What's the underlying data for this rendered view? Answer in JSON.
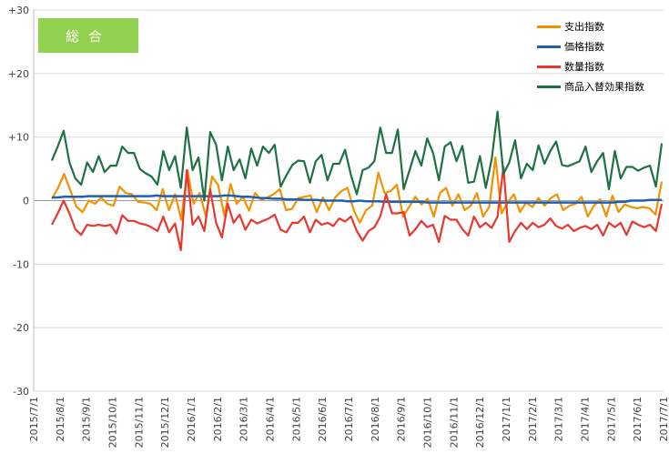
{
  "badge": {
    "label": "総合"
  },
  "chart_data": {
    "type": "line",
    "ylim": [
      -30,
      30
    ],
    "y_ticks": [
      "+30",
      "+20",
      "+10",
      "0",
      "-10",
      "-20",
      "-30"
    ],
    "x_labels": [
      "2015/7/1",
      "2015/8/1",
      "2015/9/1",
      "2015/10/1",
      "2015/11/1",
      "2015/12/1",
      "2016/1/1",
      "2016/2/1",
      "2016/3/1",
      "2016/4/1",
      "2016/5/1",
      "2016/6/1",
      "2016/7/1",
      "2016/8/1",
      "2016/9/1",
      "2016/10/1",
      "2016/11/1",
      "2016/12/1",
      "2017/1/1",
      "2017/2/1",
      "2017/3/1",
      "2017/4/1",
      "2017/5/1",
      "2017/6/1",
      "2017/7/1"
    ],
    "grid": "horizontal",
    "legend_position": "top-right",
    "series": [
      {
        "name": "支出指数",
        "color": "#f39200",
        "values": [
          0.3,
          2,
          4.2,
          1.6,
          -1,
          -1.8,
          0,
          -0.5,
          0.5,
          -0.5,
          -0.8,
          2.2,
          1.2,
          1,
          -0.2,
          -0.3,
          -0.5,
          -1.5,
          1.8,
          -1.5,
          1,
          -3,
          4.8,
          -0.5,
          1.2,
          -2.5,
          3.8,
          2.4,
          -2.4,
          2.6,
          -0.5,
          0.6,
          -1.6,
          1.2,
          0.1,
          0.5,
          1,
          1.8,
          -1.5,
          -1.3,
          0.4,
          0.6,
          0.8,
          -1.8,
          0.5,
          -1.5,
          0.5,
          1.5,
          2,
          -1.5,
          -3.5,
          -1.5,
          -0.8,
          4.4,
          1.2,
          1.5,
          2.5,
          -2.5,
          -1,
          0.6,
          -0.6,
          0.3,
          -2.5,
          1.2,
          2,
          -0.8,
          1,
          -1.5,
          -0.8,
          1.2,
          -2.5,
          -1,
          6.8,
          -2,
          -0.3,
          1,
          -1.8,
          -0.3,
          -1,
          0.4,
          -0.8,
          0.4,
          1,
          -1.5,
          -0.8,
          -0.5,
          0.6,
          -2.5,
          -0.8,
          0.2,
          -2.5,
          0.8,
          -1.8,
          -0.6,
          -1,
          -1.2,
          -1,
          -1.2,
          -2.2,
          3
        ]
      },
      {
        "name": "価格指数",
        "color": "#1f5fb4",
        "values": [
          0.5,
          0.5,
          0.6,
          0.6,
          0.6,
          0.6,
          0.7,
          0.7,
          0.7,
          0.7,
          0.7,
          0.7,
          0.7,
          0.7,
          0.7,
          0.7,
          0.7,
          0.8,
          0.7,
          0.7,
          0.7,
          0.7,
          0.7,
          0.7,
          0.7,
          0.7,
          0.7,
          0.7,
          0.8,
          0.8,
          0.7,
          0.6,
          0.6,
          0.5,
          0.4,
          0.4,
          0.3,
          0.3,
          0.2,
          0.2,
          0.2,
          0.1,
          0.1,
          0.1,
          0,
          0,
          0,
          0,
          -0.1,
          -0.1,
          0,
          -0.1,
          -0.1,
          -0.1,
          -0.2,
          -0.2,
          -0.2,
          -0.2,
          -0.2,
          -0.2,
          -0.2,
          -0.3,
          -0.3,
          -0.3,
          -0.3,
          -0.3,
          -0.3,
          -0.3,
          -0.3,
          -0.3,
          -0.3,
          -0.3,
          -0.3,
          -0.3,
          -0.3,
          -0.3,
          -0.3,
          -0.3,
          -0.3,
          -0.3,
          -0.3,
          -0.3,
          -0.3,
          -0.3,
          -0.3,
          -0.3,
          -0.3,
          -0.3,
          -0.3,
          -0.3,
          -0.3,
          -0.3,
          -0.2,
          -0.2,
          0,
          0,
          0,
          0.1,
          0.1,
          0.1
        ]
      },
      {
        "name": "数量指数",
        "color": "#e8382e",
        "values": [
          -3.8,
          -2,
          0,
          -2,
          -4.5,
          -5.4,
          -3.8,
          -4,
          -3.8,
          -4,
          -3.8,
          -5.2,
          -2.3,
          -3.2,
          -3.2,
          -3.6,
          -3.8,
          -4.2,
          -4.8,
          -2.5,
          -5,
          -3.6,
          -7.8,
          4.8,
          -3.8,
          -2.5,
          -4.8,
          1.8,
          -3.5,
          -5.8,
          -0.5,
          -3.5,
          -2.2,
          -4.6,
          -3,
          -3.6,
          -3.2,
          -2.8,
          -2.2,
          -4.6,
          -5,
          -3.5,
          -3.5,
          -2.5,
          -5,
          -3,
          -3.8,
          -3.5,
          -4,
          -2.8,
          -3.3,
          -2.5,
          -4.8,
          -6.3,
          -4.8,
          -4.2,
          -2.5,
          1,
          -2,
          -2,
          -1.8,
          -5.5,
          -4.5,
          -3.2,
          -4.2,
          -3.8,
          -6.5,
          -2.4,
          -3,
          -3,
          -4.5,
          -5.5,
          -2.5,
          -4.2,
          -3.5,
          -4.3,
          -2.5,
          5.3,
          -6.5,
          -4.8,
          -3.5,
          -4.5,
          -3.5,
          -4.2,
          -3.8,
          -2.8,
          -4,
          -4.4,
          -3.8,
          -4.8,
          -4.3,
          -4,
          -4.5,
          -3.8,
          -5.5,
          -3.5,
          -4.2,
          -3.5,
          -5.4,
          -3.3,
          -3.8,
          -4.2,
          -3.8,
          -4.8,
          -0.5
        ]
      },
      {
        "name": "商品入替効果指数",
        "color": "#1e7145",
        "values": [
          6.3,
          8.5,
          11,
          6,
          3.5,
          2.5,
          6,
          4.5,
          7,
          4.5,
          5.5,
          5.5,
          8.5,
          7.5,
          7.5,
          5,
          4.3,
          3.8,
          2.5,
          7.8,
          4.8,
          7,
          2,
          11.5,
          4.8,
          6.8,
          0,
          10.8,
          8.8,
          3.2,
          8.5,
          4.8,
          6.5,
          3.5,
          8.2,
          5.5,
          8.5,
          7.5,
          8.8,
          2.2,
          4,
          5.6,
          6.3,
          6.2,
          2.8,
          6.2,
          7.2,
          3.2,
          5.8,
          5.8,
          8,
          4,
          1,
          4.8,
          5.2,
          6.2,
          11.5,
          7.5,
          7.5,
          11.2,
          1.8,
          4.8,
          7.8,
          5.5,
          9.8,
          7.5,
          3.2,
          8.5,
          9.2,
          6.2,
          8.6,
          2.8,
          3,
          7,
          2,
          6.5,
          14,
          4.2,
          6,
          9.5,
          3.5,
          5.8,
          4.8,
          8.7,
          5.8,
          7.8,
          9.3,
          5.6,
          5.4,
          5.8,
          6.2,
          8.5,
          4.5,
          6.2,
          7.5,
          1.8,
          7.8,
          3.5,
          5.3,
          5.3,
          4.7,
          5.2,
          5.5,
          2.2,
          9
        ]
      }
    ]
  }
}
